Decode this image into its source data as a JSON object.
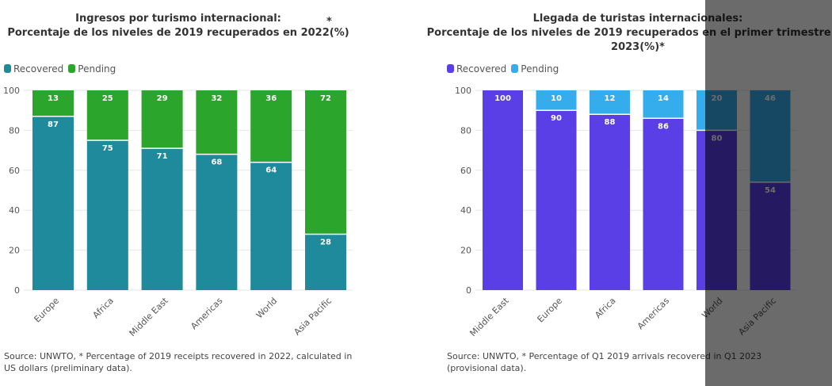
{
  "chart_data": [
    {
      "type": "bar",
      "stacked": true,
      "title_line1": "Ingresos por turismo internacional:",
      "title_line2": "Porcentaje de los niveles de 2019 recuperados en 2022(%)",
      "title_mark": "*",
      "categories": [
        "Europe",
        "Africa",
        "Middle East",
        "Americas",
        "World",
        "Asia Pacific"
      ],
      "series": [
        {
          "name": "Recovered",
          "color": "#1f8a9b",
          "values": [
            87,
            75,
            71,
            68,
            64,
            28
          ]
        },
        {
          "name": "Pending",
          "color": "#2ba52b",
          "values": [
            13,
            25,
            29,
            32,
            36,
            72
          ]
        }
      ],
      "ylim": [
        0,
        100
      ],
      "yticks": [
        0,
        20,
        40,
        60,
        80,
        100
      ],
      "legend": "top-left",
      "source": "Source: UNWTO, * Percentage of 2019 receipts recovered in 2022, calculated in US dollars (preliminary data)."
    },
    {
      "type": "bar",
      "stacked": true,
      "title_line1": "Llegada de turistas internacionales:",
      "title_line2": "Porcentaje de los niveles de 2019 recuperados en el primer trimestre de 2023(%)*",
      "categories": [
        "Middle East",
        "Europe",
        "Africa",
        "Americas",
        "World",
        "Asia Pacific"
      ],
      "series": [
        {
          "name": "Recovered",
          "color": "#5a3fe6",
          "values": [
            100,
            90,
            88,
            86,
            80,
            54
          ]
        },
        {
          "name": "Pending",
          "color": "#35acec",
          "values": [
            0,
            10,
            12,
            14,
            20,
            46
          ]
        }
      ],
      "ylim": [
        0,
        100
      ],
      "yticks": [
        0,
        20,
        40,
        60,
        80,
        100
      ],
      "legend": "top-left",
      "source": "Source: UNWTO, * Percentage of Q1 2019 arrivals recovered in Q1 2023 (provisional data)."
    }
  ]
}
